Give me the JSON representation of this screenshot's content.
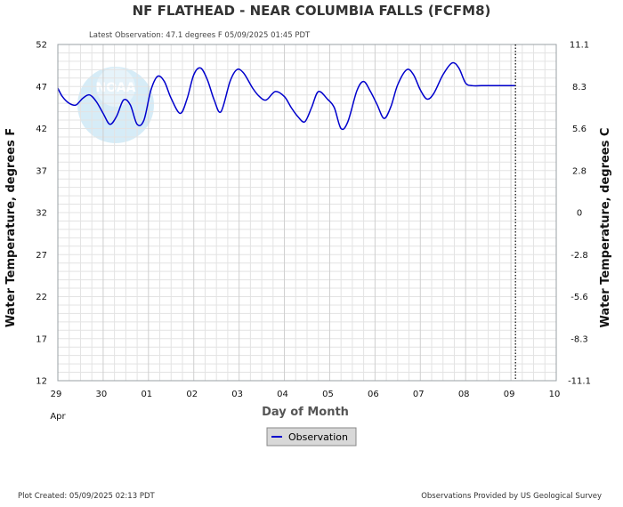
{
  "title": "NF FLATHEAD - NEAR COLUMBIA FALLS  (FCFM8)",
  "subtitle": "Latest Observation: 47.1 degrees F 05/09/2025 01:45 PDT",
  "footer_left": "Plot Created: 05/09/2025 02:13 PDT",
  "footer_right": "Observations Provided by US Geological Survey",
  "logo_text": "NOAA",
  "colors": {
    "series": "#0000cc",
    "grid": "#e3e3e3",
    "logo": "#b9dff0"
  },
  "chart_data": {
    "type": "line",
    "title": "NF FLATHEAD - NEAR COLUMBIA FALLS  (FCFM8)",
    "xlabel": "Day of Month",
    "ylabel_left": "Water Temperature, degrees F",
    "ylabel_right": "Water Temperature, degrees C",
    "xlim": [
      0,
      11
    ],
    "ylim": [
      12,
      52
    ],
    "x_ticks": [
      {
        "label": "29",
        "sub": "Apr"
      },
      {
        "label": "30"
      },
      {
        "label": "01"
      },
      {
        "label": "02"
      },
      {
        "label": "03"
      },
      {
        "label": "04"
      },
      {
        "label": "05"
      },
      {
        "label": "06"
      },
      {
        "label": "07"
      },
      {
        "label": "08"
      },
      {
        "label": "09"
      },
      {
        "label": "10"
      }
    ],
    "y_ticks_left": [
      "52",
      "47",
      "42",
      "37",
      "32",
      "27",
      "22",
      "17",
      "12"
    ],
    "y_ticks_right": [
      "11.1",
      "8.3",
      "5.6",
      "2.8",
      "0",
      "-2.8",
      "-5.6",
      "-8.3",
      "-11.1"
    ],
    "grid": true,
    "legend_position": "bottom-center",
    "current_time_line_x": 10.1,
    "series": [
      {
        "name": "Observation",
        "x": [
          0.0,
          0.1,
          0.25,
          0.4,
          0.55,
          0.7,
          0.85,
          1.0,
          1.15,
          1.3,
          1.45,
          1.6,
          1.75,
          1.9,
          2.05,
          2.2,
          2.35,
          2.5,
          2.7,
          2.85,
          3.0,
          3.15,
          3.3,
          3.45,
          3.6,
          3.8,
          3.95,
          4.1,
          4.3,
          4.45,
          4.6,
          4.8,
          5.0,
          5.15,
          5.3,
          5.45,
          5.6,
          5.75,
          5.95,
          6.1,
          6.25,
          6.4,
          6.6,
          6.75,
          6.9,
          7.05,
          7.2,
          7.35,
          7.5,
          7.7,
          7.85,
          8.0,
          8.15,
          8.3,
          8.5,
          8.7,
          8.85,
          9.0,
          9.15,
          9.35,
          9.55,
          9.7,
          9.85,
          10.0,
          10.1
        ],
        "y": [
          46.8,
          45.8,
          45.0,
          44.8,
          45.6,
          46.0,
          45.2,
          43.8,
          42.5,
          43.5,
          45.4,
          44.8,
          42.5,
          43.0,
          46.5,
          48.2,
          47.6,
          45.6,
          43.8,
          45.5,
          48.4,
          49.2,
          47.8,
          45.4,
          44.0,
          47.6,
          49.0,
          48.6,
          46.8,
          45.8,
          45.4,
          46.4,
          45.8,
          44.5,
          43.4,
          42.8,
          44.5,
          46.4,
          45.5,
          44.5,
          42.0,
          42.8,
          46.5,
          47.6,
          46.4,
          44.8,
          43.2,
          44.6,
          47.2,
          49.0,
          48.4,
          46.6,
          45.5,
          46.2,
          48.4,
          49.8,
          49.2,
          47.4,
          47.1,
          47.1,
          47.1,
          47.1,
          47.1,
          47.1,
          47.1
        ]
      }
    ]
  }
}
